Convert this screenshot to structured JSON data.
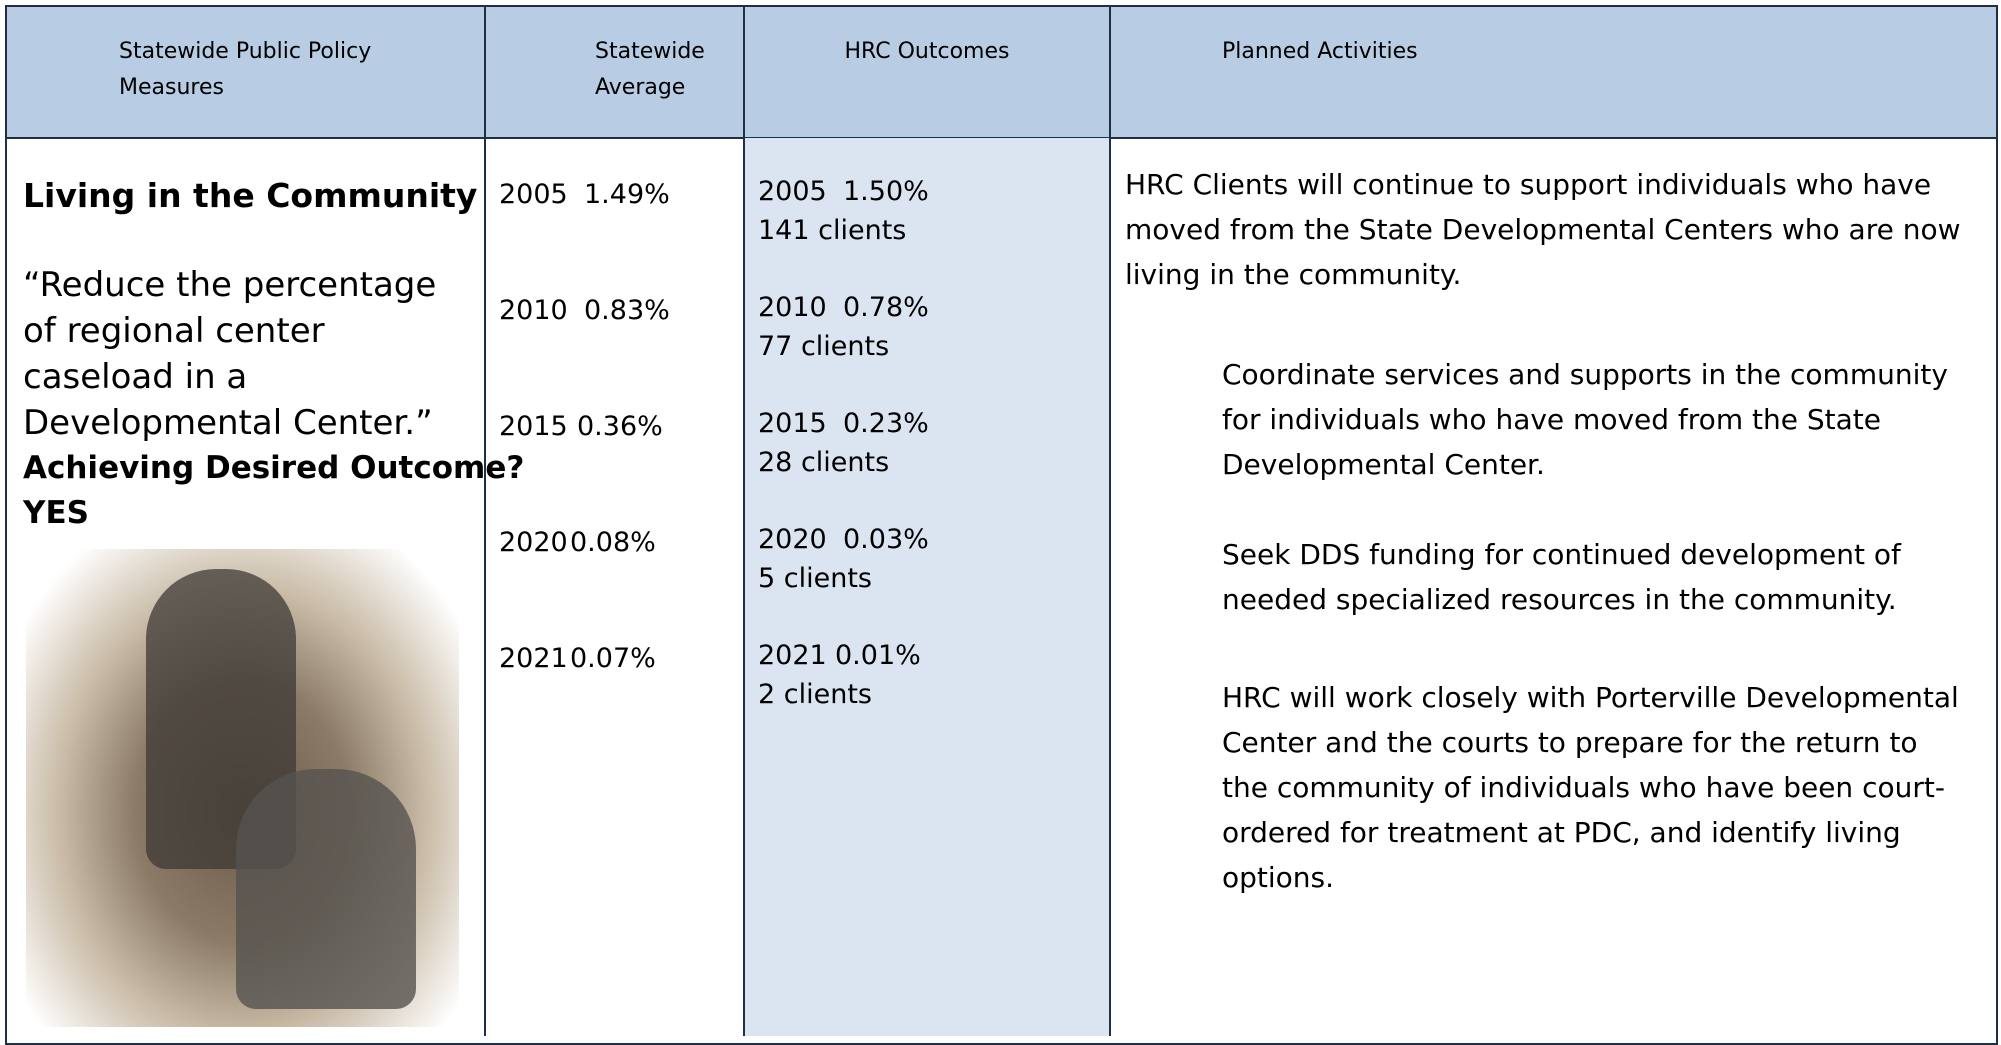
{
  "table": {
    "headers": [
      "Statewide Public Policy Measures",
      "Statewide Average",
      "HRC Outcomes",
      "Planned Activities"
    ],
    "measure": {
      "title": "Living in the Community",
      "quote": "“Reduce the percentage of regional center caseload in a Developmental Center.”",
      "question": "Achieving Desired Outcome?",
      "answer": "YES"
    },
    "statewide": [
      {
        "year": "2005",
        "value": "1.49%"
      },
      {
        "year": "2010",
        "value": "0.83%"
      },
      {
        "year": "2015",
        "value": "0.36%"
      },
      {
        "year": "2020",
        "value": "0.08%"
      },
      {
        "year": "2021",
        "value": "0.07%"
      }
    ],
    "hrc": [
      {
        "year": "2005",
        "value": "1.50%",
        "clients": "141 clients"
      },
      {
        "year": "2010",
        "value": "0.78%",
        "clients": "77 clients"
      },
      {
        "year": "2015",
        "value": "0.23%",
        "clients": "28 clients"
      },
      {
        "year": "2020",
        "value": "0.03%",
        "clients": "5 clients"
      },
      {
        "year": "2021",
        "value": "0.01%",
        "clients": "2 clients"
      }
    ],
    "activities": {
      "intro": "HRC Clients will continue to support individuals who have moved from the State Developmental Centers who are now living in the community.",
      "items": [
        "Coordinate services and supports in the community for individuals who have moved from the State Developmental Center.",
        "Seek DDS funding for continued development of needed specialized resources in the community.",
        "HRC will work closely with Porterville Developmental Center and the courts to prepare for the return to the community of individuals who have been court-ordered for treatment at PDC, and identify living options."
      ]
    }
  }
}
